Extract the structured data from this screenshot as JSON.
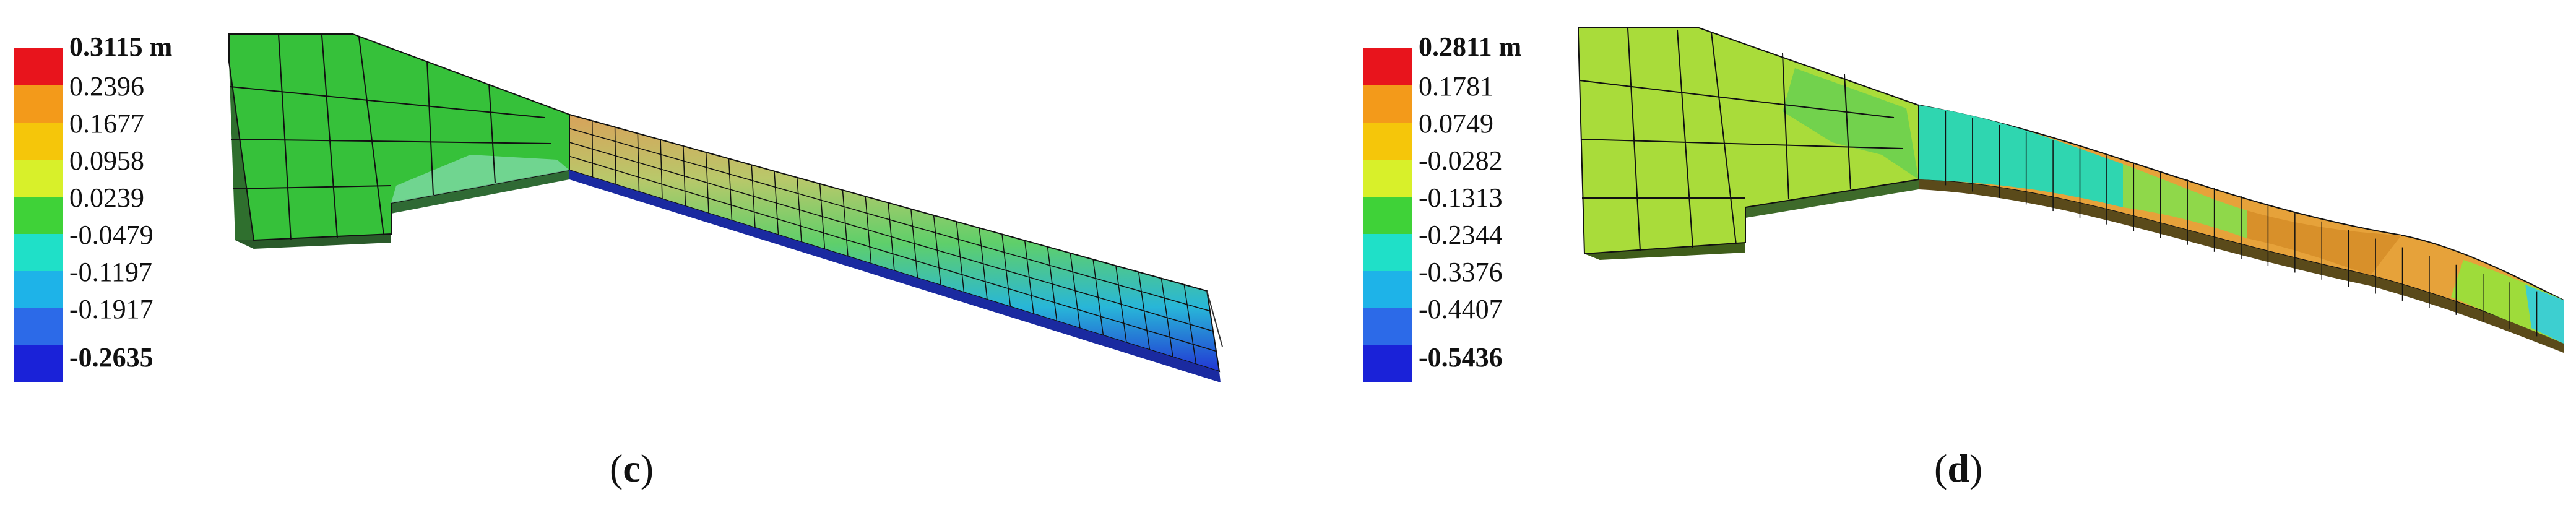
{
  "panels": [
    {
      "id": "c",
      "caption_letter": "c",
      "legend": {
        "labels": [
          "0.3115 m",
          "0.2396",
          "0.1677",
          "0.0958",
          "0.0239",
          "-0.0479",
          "-0.1197",
          "-0.1917",
          "-0.2635"
        ],
        "colors": [
          "#e8141c",
          "#f39a1a",
          "#f5c60a",
          "#d8f02a",
          "#3fd238",
          "#1fe0c8",
          "#1eb3e8",
          "#2c6ae8",
          "#1a22d8"
        ]
      }
    },
    {
      "id": "d",
      "caption_letter": "d",
      "legend": {
        "labels": [
          "0.2811 m",
          "0.1781",
          "0.0749",
          "-0.0282",
          "-0.1313",
          "-0.2344",
          "-0.3376",
          "-0.4407",
          "-0.5436"
        ],
        "colors": [
          "#e8141c",
          "#f39a1a",
          "#f5c60a",
          "#d8f02a",
          "#3fd238",
          "#1fe0c8",
          "#1eb3e8",
          "#2c6ae8",
          "#1a22d8"
        ]
      }
    }
  ]
}
